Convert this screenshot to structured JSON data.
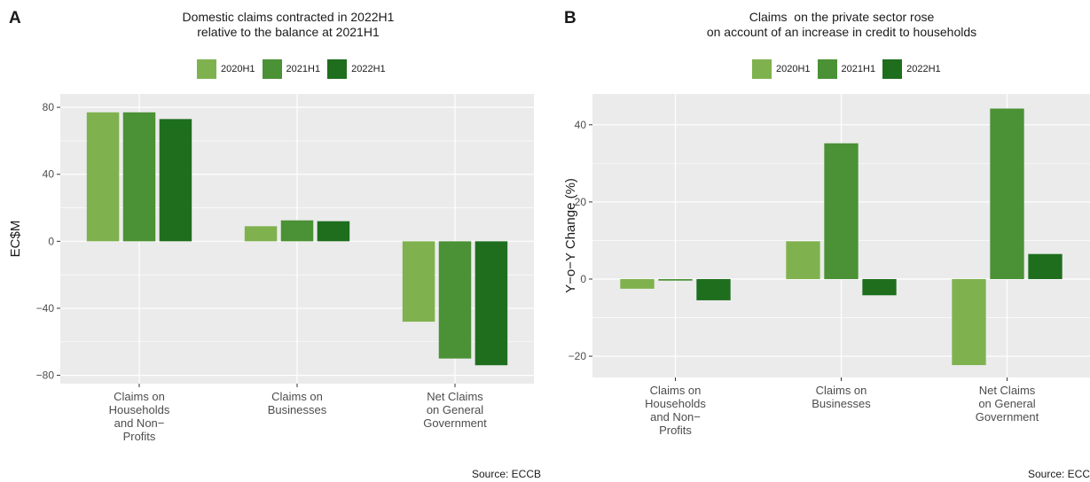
{
  "chart_data": [
    {
      "type": "bar",
      "panel_label": "A",
      "title": [
        "Domestic claims contracted in 2022H1",
        "relative to the balance at 2021H1"
      ],
      "xlabel": "",
      "ylabel": "EC$M",
      "categories": [
        [
          "Claims on",
          "Households",
          "and Non−",
          "Profits"
        ],
        [
          "Claims on",
          "Businesses"
        ],
        [
          "Net Claims",
          "on General",
          "Government"
        ]
      ],
      "series": [
        {
          "name": "2020H1",
          "values": [
            77,
            9,
            -48
          ],
          "color": "#7fb24e"
        },
        {
          "name": "2021H1",
          "values": [
            77,
            12.5,
            -70
          ],
          "color": "#4b9135"
        },
        {
          "name": "2022H1",
          "values": [
            73,
            12,
            -74
          ],
          "color": "#1e6e1e"
        }
      ],
      "ylim": [
        -85,
        88
      ],
      "yticks": [
        80,
        40,
        0,
        -40,
        -80
      ],
      "ytick_labels": [
        "80",
        "40",
        "0",
        "−40",
        "−80"
      ],
      "grid": true,
      "legend_position": "top",
      "source": "Source: ECCB"
    },
    {
      "type": "bar",
      "panel_label": "B",
      "title": [
        "Claims  on the private sector rose",
        "on account of an increase in credit to households"
      ],
      "xlabel": "",
      "ylabel": "Y−o−Y Change (%)",
      "categories": [
        [
          "Claims on",
          "Households",
          "and Non−",
          "Profits"
        ],
        [
          "Claims on",
          "Businesses"
        ],
        [
          "Net Claims",
          "on General",
          "Government"
        ]
      ],
      "series": [
        {
          "name": "2020H1",
          "values": [
            -2.5,
            9.8,
            -22.3
          ],
          "color": "#7fb24e"
        },
        {
          "name": "2021H1",
          "values": [
            -0.4,
            35.2,
            44.2
          ],
          "color": "#4b9135"
        },
        {
          "name": "2022H1",
          "values": [
            -5.5,
            -4.2,
            6.5
          ],
          "color": "#1e6e1e"
        }
      ],
      "ylim": [
        -25.5,
        48
      ],
      "yticks": [
        40,
        20,
        0,
        -20
      ],
      "ytick_labels": [
        "40",
        "20",
        "0",
        "−20"
      ],
      "grid": true,
      "legend_position": "top",
      "source": "Source: ECC"
    }
  ]
}
